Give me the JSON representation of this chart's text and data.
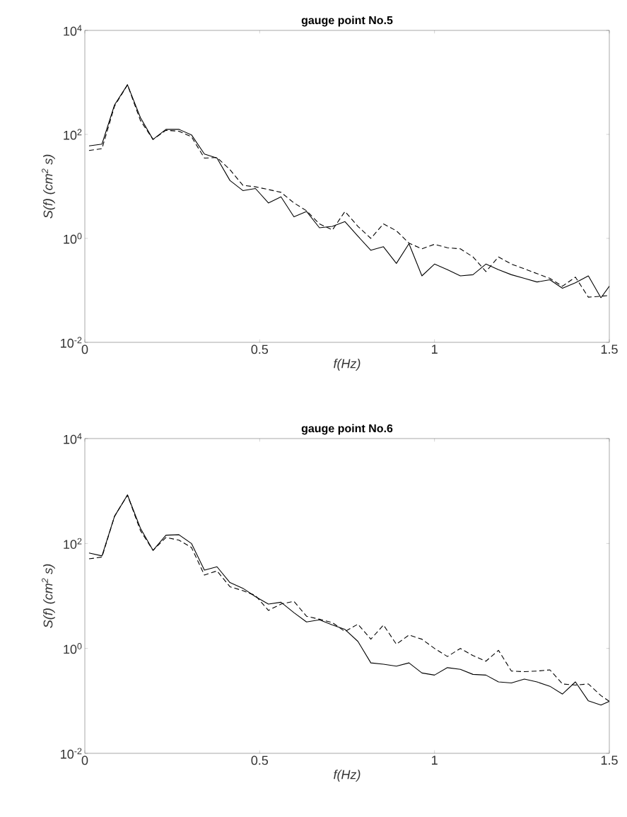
{
  "chart_data": [
    {
      "type": "line",
      "title": "gauge point No.5",
      "xlabel": "f(Hz)",
      "ylabel": "S(f) (cm$^{2}$ s)",
      "log": "y",
      "grid": false,
      "xlim": [
        0,
        1.5
      ],
      "ylim": [
        0.01,
        10000
      ],
      "xticks": [
        0,
        0.5,
        1,
        1.5
      ],
      "yticks": [
        {
          "value": 0.01,
          "label": "10$^{-2}$"
        },
        {
          "value": 1,
          "label": "10$^{0}$"
        },
        {
          "value": 100,
          "label": "10$^{2}$"
        },
        {
          "value": 10000,
          "label": "10$^{4}$"
        }
      ],
      "x": [
        0.012,
        0.049,
        0.085,
        0.122,
        0.159,
        0.195,
        0.232,
        0.269,
        0.305,
        0.342,
        0.378,
        0.415,
        0.452,
        0.488,
        0.525,
        0.561,
        0.598,
        0.634,
        0.671,
        0.708,
        0.744,
        0.781,
        0.818,
        0.854,
        0.891,
        0.927,
        0.964,
        1.0,
        1.037,
        1.074,
        1.11,
        1.147,
        1.183,
        1.22,
        1.257,
        1.293,
        1.33,
        1.366,
        1.403,
        1.44,
        1.476,
        1.5
      ],
      "series": [
        {
          "color": "#000000",
          "line_style": "solid",
          "values": [
            60,
            65,
            370,
            900,
            210,
            80,
            125,
            125,
            98,
            42,
            35,
            13,
            8.3,
            9.1,
            4.8,
            6.3,
            2.6,
            3.3,
            1.6,
            1.7,
            2.1,
            1.1,
            0.59,
            0.69,
            0.33,
            0.79,
            0.19,
            0.32,
            0.25,
            0.19,
            0.2,
            0.32,
            0.25,
            0.2,
            0.17,
            0.145,
            0.16,
            0.11,
            0.14,
            0.19,
            0.072,
            0.12
          ]
        },
        {
          "color": "#000000",
          "line_style": "dashed",
          "values": [
            49,
            53,
            350,
            900,
            185,
            80,
            120,
            115,
            90,
            35,
            36,
            21,
            10.5,
            9.8,
            8.7,
            7.7,
            4.8,
            3.4,
            1.9,
            1.45,
            3.3,
            1.7,
            1.0,
            1.9,
            1.4,
            0.81,
            0.63,
            0.77,
            0.66,
            0.63,
            0.44,
            0.23,
            0.44,
            0.32,
            0.26,
            0.21,
            0.17,
            0.12,
            0.18,
            0.074,
            0.077,
            0.08
          ]
        }
      ]
    },
    {
      "type": "line",
      "title": "gauge point No.6",
      "xlabel": "f(Hz)",
      "ylabel": "S(f) (cm$^{2}$ s)",
      "log": "y",
      "grid": false,
      "xlim": [
        0,
        1.5
      ],
      "ylim": [
        0.01,
        10000
      ],
      "xticks": [
        0,
        0.5,
        1,
        1.5
      ],
      "yticks": [
        {
          "value": 0.01,
          "label": "10$^{-2}$"
        },
        {
          "value": 1,
          "label": "10$^{0}$"
        },
        {
          "value": 100,
          "label": "10$^{2}$"
        },
        {
          "value": 10000,
          "label": "10$^{4}$"
        }
      ],
      "x": [
        0.012,
        0.049,
        0.085,
        0.122,
        0.159,
        0.195,
        0.232,
        0.269,
        0.305,
        0.342,
        0.378,
        0.415,
        0.452,
        0.488,
        0.525,
        0.561,
        0.598,
        0.634,
        0.671,
        0.708,
        0.744,
        0.781,
        0.818,
        0.854,
        0.891,
        0.927,
        0.964,
        1.0,
        1.037,
        1.074,
        1.11,
        1.147,
        1.183,
        1.22,
        1.257,
        1.293,
        1.33,
        1.366,
        1.403,
        1.44,
        1.476,
        1.5
      ],
      "series": [
        {
          "color": "#000000",
          "line_style": "solid",
          "values": [
            66,
            58,
            330,
            840,
            195,
            74,
            144,
            147,
            100,
            31,
            36,
            18,
            14,
            9.7,
            7.0,
            7.6,
            4.8,
            3.2,
            3.5,
            2.8,
            2.3,
            1.36,
            0.53,
            0.5,
            0.46,
            0.53,
            0.34,
            0.31,
            0.43,
            0.4,
            0.32,
            0.31,
            0.23,
            0.22,
            0.26,
            0.23,
            0.19,
            0.135,
            0.23,
            0.1,
            0.083,
            0.098
          ]
        },
        {
          "color": "#000000",
          "line_style": "dashed",
          "values": [
            51,
            55,
            330,
            840,
            176,
            74,
            130,
            116,
            84,
            25,
            30,
            15,
            12.6,
            10.2,
            5.3,
            7.0,
            7.9,
            4.1,
            3.6,
            3.1,
            2.1,
            2.9,
            1.5,
            2.8,
            1.2,
            1.8,
            1.5,
            1.0,
            0.7,
            1.0,
            0.73,
            0.57,
            0.92,
            0.37,
            0.36,
            0.37,
            0.39,
            0.21,
            0.2,
            0.21,
            0.126,
            0.098
          ]
        }
      ]
    }
  ]
}
